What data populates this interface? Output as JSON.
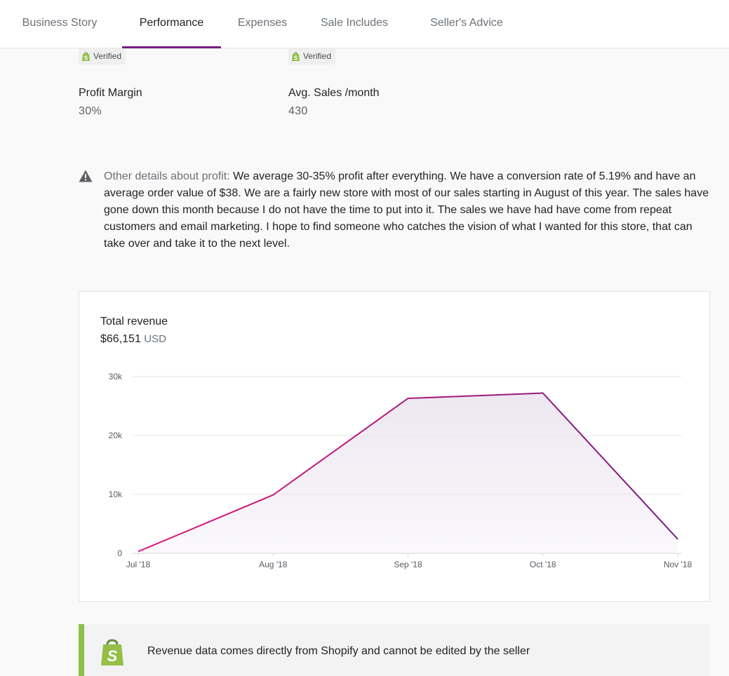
{
  "tabs": [
    {
      "label": "Business Story"
    },
    {
      "label": "Performance"
    },
    {
      "label": "Expenses"
    },
    {
      "label": "Sale Includes"
    },
    {
      "label": "Seller's Advice"
    }
  ],
  "badges": {
    "verified_label": "Verified"
  },
  "stats": {
    "profit_margin": {
      "label": "Profit Margin",
      "value": "30%"
    },
    "avg_sales": {
      "label": "Avg. Sales /month",
      "value": "430"
    }
  },
  "profit_note": {
    "lead": "Other details about profit:",
    "body": "We average 30-35% profit after everything. We have a conversion rate of 5.19% and have an average order value of $38. We are a fairly new store with most of our sales starting in August of this year. The sales have gone down this month because I do not have the time to put into it. The sales we have had have come from repeat customers and email marketing. I hope to find someone who catches the vision of what I wanted for this store, that can take over and take it to the next level."
  },
  "revenue": {
    "title": "Total revenue",
    "amount": "$66,151",
    "currency": "USD"
  },
  "chart_data": {
    "type": "area",
    "title": "Total revenue",
    "categories": [
      "Jul '18",
      "Aug '18",
      "Sep '18",
      "Oct '18",
      "Nov '18"
    ],
    "values": [
      300,
      9900,
      26300,
      27200,
      2400
    ],
    "ylim": [
      0,
      30000
    ],
    "yticks": [
      0,
      10000,
      20000,
      30000
    ],
    "ytick_labels": [
      "0",
      "10k",
      "20k",
      "30k"
    ],
    "xlabel": "",
    "ylabel": "",
    "grid": true,
    "colors": {
      "line_start": "#e0187b",
      "line_end": "#7a1b84",
      "fill": "#ece6f0"
    }
  },
  "shopify_note": {
    "text": "Revenue data comes directly from Shopify and cannot be edited by the seller"
  }
}
